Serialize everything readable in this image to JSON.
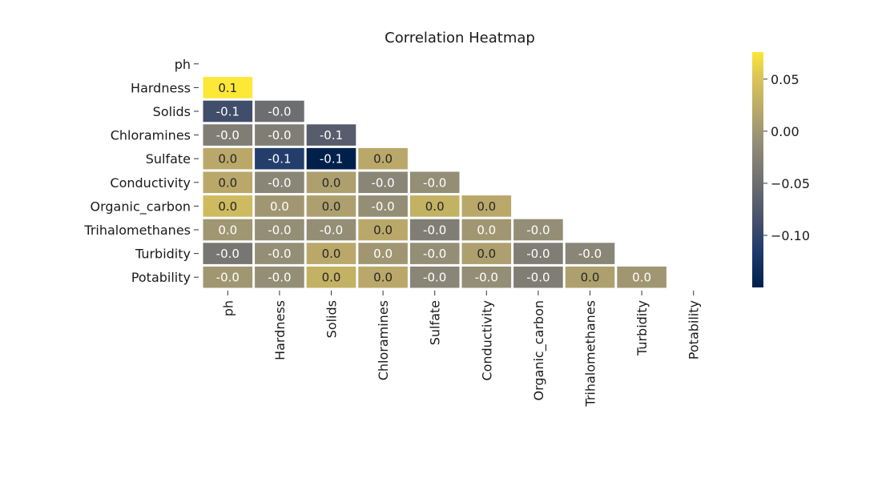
{
  "chart_data": {
    "type": "heatmap",
    "title": "Correlation Heatmap",
    "labels": [
      "ph",
      "Hardness",
      "Solids",
      "Chloramines",
      "Sulfate",
      "Conductivity",
      "Organic_carbon",
      "Trihalomethanes",
      "Turbidity",
      "Potability"
    ],
    "mask": "upper-triangle-and-diagonal",
    "rows": [
      {
        "label": "ph",
        "values": []
      },
      {
        "label": "Hardness",
        "values": [
          0.08
        ]
      },
      {
        "label": "Solids",
        "values": [
          -0.09,
          -0.05
        ]
      },
      {
        "label": "Chloramines",
        "values": [
          -0.03,
          -0.03,
          -0.07
        ]
      },
      {
        "label": "Sulfate",
        "values": [
          0.02,
          -0.11,
          -0.15,
          0.02
        ]
      },
      {
        "label": "Conductivity",
        "values": [
          0.02,
          -0.02,
          0.01,
          -0.02,
          -0.01
        ]
      },
      {
        "label": "Organic_carbon",
        "values": [
          0.04,
          0.0,
          0.01,
          -0.01,
          0.03,
          0.02
        ]
      },
      {
        "label": "Trihalomethanes",
        "values": [
          0.0,
          -0.01,
          -0.01,
          0.02,
          -0.03,
          0.0,
          -0.01
        ]
      },
      {
        "label": "Turbidity",
        "values": [
          -0.04,
          -0.01,
          0.02,
          0.0,
          -0.01,
          0.01,
          -0.03,
          -0.02
        ]
      },
      {
        "label": "Potability",
        "values": [
          -0.0,
          -0.01,
          0.03,
          0.02,
          -0.02,
          -0.01,
          -0.03,
          0.01,
          0.0
        ]
      }
    ],
    "cell_text": [
      [],
      [
        "0.1"
      ],
      [
        "-0.1",
        "-0.0"
      ],
      [
        "-0.0",
        "-0.0",
        "-0.1"
      ],
      [
        "0.0",
        "-0.1",
        "-0.1",
        "0.0"
      ],
      [
        "0.0",
        "-0.0",
        "0.0",
        "-0.0",
        "-0.0"
      ],
      [
        "0.0",
        "0.0",
        "0.0",
        "-0.0",
        "0.0",
        "0.0"
      ],
      [
        "0.0",
        "-0.0",
        "-0.0",
        "0.0",
        "-0.0",
        "0.0",
        "-0.0"
      ],
      [
        "-0.0",
        "-0.0",
        "0.0",
        "0.0",
        "-0.0",
        "0.0",
        "-0.0",
        "-0.0"
      ],
      [
        "-0.0",
        "-0.0",
        "0.0",
        "0.0",
        "-0.0",
        "-0.0",
        "-0.0",
        "0.0",
        "0.0"
      ]
    ],
    "colormap": "cividis",
    "vmin": -0.15,
    "vmax": 0.076,
    "colorbar_ticks": [
      "0.05",
      "0.00",
      "−0.05",
      "−0.10"
    ],
    "colorbar_tick_values": [
      0.05,
      0.0,
      -0.05,
      -0.1
    ]
  }
}
